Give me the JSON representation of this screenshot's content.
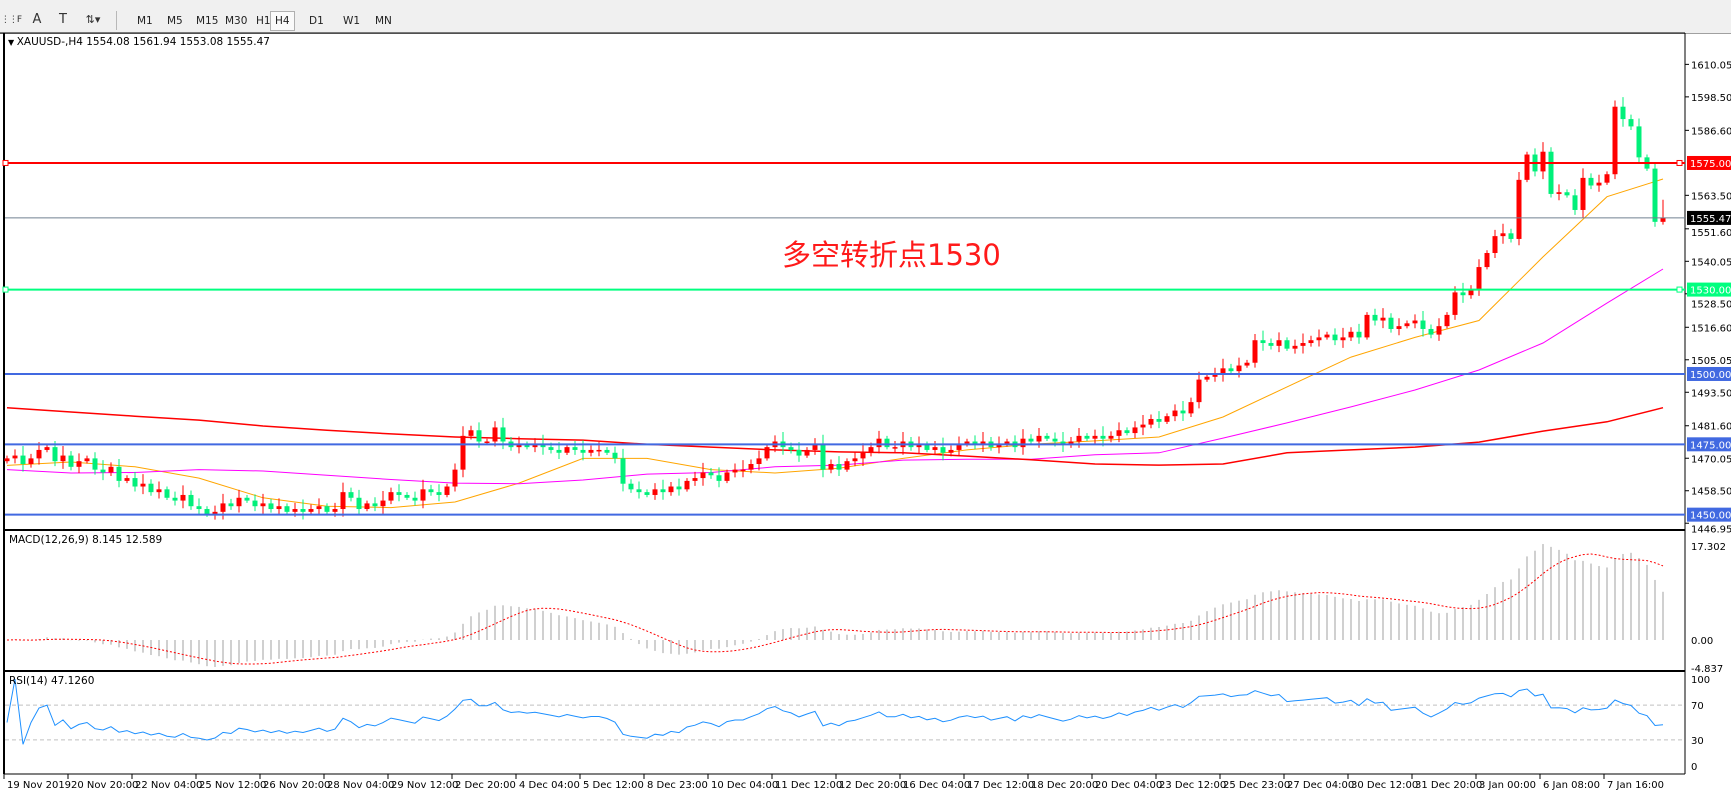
{
  "toolbar": {
    "icons": [
      "grid-icon",
      "text-icon",
      "text-label-icon",
      "arrows-icon"
    ],
    "timeframes": [
      "M1",
      "M5",
      "M15",
      "M30",
      "H1",
      "H4",
      "D1",
      "W1",
      "MN"
    ],
    "active_timeframe": "H4"
  },
  "chart": {
    "title": "XAUUSD-,H4  1554.08 1561.94 1553.08 1555.47",
    "annotation": "多空转折点1530",
    "macd_title": "MACD(12,26,9) 8.145 12.589",
    "rsi_title": "RSI(14) 47.1260"
  },
  "chart_data": {
    "type": "candlestick",
    "symbol": "XAUUSD-",
    "timeframe": "H4",
    "colors": {
      "up": "#ff0000",
      "down": "#00f07a",
      "macd_hist": "#c0c0c0",
      "macd_signal": "#ff0000",
      "rsi": "#1e90ff"
    },
    "price_axis": {
      "ylim": [
        1444.9,
        1621.2
      ],
      "ticks": [
        "1610.05",
        "1598.50",
        "1586.60",
        "1563.50",
        "1551.60",
        "1540.05",
        "1528.50",
        "1516.60",
        "1505.05",
        "1493.50",
        "1481.60",
        "1470.05",
        "1458.50",
        "1446.95"
      ]
    },
    "time_labels": [
      "19 Nov 2019",
      "20 Nov 20:00",
      "22 Nov 04:00",
      "25 Nov 12:00",
      "26 Nov 20:00",
      "28 Nov 04:00",
      "29 Nov 12:00",
      "2 Dec 20:00",
      "4 Dec 04:00",
      "5 Dec 12:00",
      "8 Dec 23:00",
      "10 Dec 04:00",
      "11 Dec 12:00",
      "12 Dec 20:00",
      "16 Dec 04:00",
      "17 Dec 12:00",
      "18 Dec 20:00",
      "20 Dec 04:00",
      "23 Dec 12:00",
      "25 Dec 23:00",
      "27 Dec 04:00",
      "30 Dec 12:00",
      "31 Dec 20:00",
      "3 Jan 00:00",
      "6 Jan 08:00",
      "7 Jan 16:00"
    ],
    "first_open": 1469,
    "closes": [
      1470,
      1471,
      1468,
      1470,
      1473,
      1474,
      1469,
      1471,
      1467,
      1469,
      1470,
      1466,
      1465,
      1467,
      1462,
      1463,
      1460,
      1461,
      1458,
      1459,
      1456,
      1455,
      1457,
      1453,
      1452,
      1450,
      1451,
      1454,
      1453,
      1456,
      1455,
      1453,
      1454,
      1452,
      1453,
      1451,
      1452,
      1451,
      1452,
      1453,
      1451,
      1452,
      1458,
      1456,
      1452,
      1454,
      1453,
      1455,
      1458,
      1457,
      1456,
      1455,
      1459,
      1458,
      1457,
      1460,
      1466,
      1478,
      1480,
      1476,
      1476,
      1481,
      1476,
      1474,
      1475,
      1474,
      1475,
      1474,
      1473,
      1472,
      1474,
      1473,
      1472,
      1473,
      1473,
      1472,
      1470,
      1461,
      1459,
      1458,
      1457,
      1459,
      1458,
      1460,
      1459,
      1462,
      1463,
      1465,
      1464,
      1462,
      1465,
      1466,
      1466,
      1468,
      1470,
      1474,
      1476,
      1474,
      1473,
      1471,
      1473,
      1475,
      1466,
      1468,
      1466,
      1469,
      1470,
      1472,
      1474,
      1477,
      1474,
      1474,
      1476,
      1474,
      1475,
      1473,
      1474,
      1472,
      1473,
      1475,
      1476,
      1475,
      1476,
      1474,
      1475,
      1476,
      1474,
      1477,
      1476,
      1478,
      1477,
      1476,
      1475,
      1476,
      1478,
      1477,
      1478,
      1477,
      1478,
      1480,
      1479,
      1481,
      1482,
      1484,
      1483,
      1485,
      1487,
      1486,
      1490,
      1498,
      1499,
      1500,
      1502,
      1501,
      1503,
      1504,
      1512,
      1511,
      1510,
      1512,
      1509,
      1510,
      1511,
      1512,
      1513,
      1514,
      1512,
      1513,
      1515,
      1513,
      1521,
      1519,
      1520,
      1516,
      1517,
      1518,
      1519,
      1516,
      1514,
      1517,
      1521,
      1529,
      1528,
      1530,
      1538,
      1543,
      1549,
      1550,
      1548,
      1569,
      1578,
      1572,
      1579,
      1564,
      1564.6,
      1563.5,
      1558.3,
      1569.7,
      1567,
      1568,
      1571,
      1595,
      1590.6,
      1588,
      1577,
      1573,
      1554.08,
      1555.47
    ],
    "last_bar": {
      "open": 1554.08,
      "high": 1561.94,
      "low": 1553.08,
      "close": 1555.47
    },
    "ma_lines": [
      {
        "color": "#ffa500",
        "values": [
          1467.5,
          1468.7,
          1467,
          1463,
          1456,
          1453,
          1452.5,
          1454.5,
          1461.2,
          1470,
          1470,
          1466,
          1464.8,
          1466.5,
          1470,
          1473,
          1475,
          1476.2,
          1477.6,
          1484.7,
          1495.4,
          1506,
          1513,
          1519,
          1541.6,
          1563,
          1569.3
        ]
      },
      {
        "color": "#ff00ff",
        "values": [
          1466,
          1464.8,
          1465,
          1466,
          1465.5,
          1464,
          1462.5,
          1461.2,
          1461,
          1462.3,
          1464.4,
          1465,
          1467,
          1467.6,
          1469.4,
          1469.7,
          1469.7,
          1471.3,
          1472,
          1477.2,
          1482.6,
          1488.3,
          1494.3,
          1501.4,
          1511,
          1525.2,
          1537.3
        ]
      },
      {
        "color": "#ff0000",
        "values": [
          1488,
          1486.5,
          1485,
          1483.6,
          1481.5,
          1480,
          1478.7,
          1477.6,
          1477,
          1476.5,
          1475,
          1474,
          1473,
          1472.3,
          1472,
          1470.8,
          1469.5,
          1468,
          1467.6,
          1468,
          1472,
          1473,
          1474,
          1475.8,
          1479.7,
          1483,
          1488
        ]
      }
    ],
    "hlines": [
      {
        "price": 1575.0,
        "label": "1575.00",
        "color": "#ff0000",
        "label_text_color": "#ffffff"
      },
      {
        "price": 1555.47,
        "label": "1555.47",
        "color": "#708090",
        "label_bg": "#000000",
        "label_text_color": "#ffffff"
      },
      {
        "price": 1530.0,
        "label": "1530.00",
        "color": "#00ff7f",
        "label_text_color": "#ffffff"
      },
      {
        "price": 1500.0,
        "label": "1500.00",
        "color": "#4169e1",
        "label_text_color": "#ffffff"
      },
      {
        "price": 1475.0,
        "label": "1475.00",
        "color": "#4169e1",
        "label_text_color": "#ffffff"
      },
      {
        "price": 1450.0,
        "label": "1450.00",
        "color": "#4169e1",
        "label_text_color": "#ffffff"
      }
    ],
    "macd": {
      "fast": 12,
      "slow": 26,
      "signal": 9,
      "ylim": [
        -4.837,
        17.302
      ],
      "ticks": [
        "17.302",
        "0.00",
        "-4.837"
      ]
    },
    "rsi": {
      "period": 14,
      "ylim": [
        0,
        100
      ],
      "levels": [
        70,
        30
      ],
      "ticks": [
        "100",
        "70",
        "30",
        "0"
      ]
    }
  }
}
